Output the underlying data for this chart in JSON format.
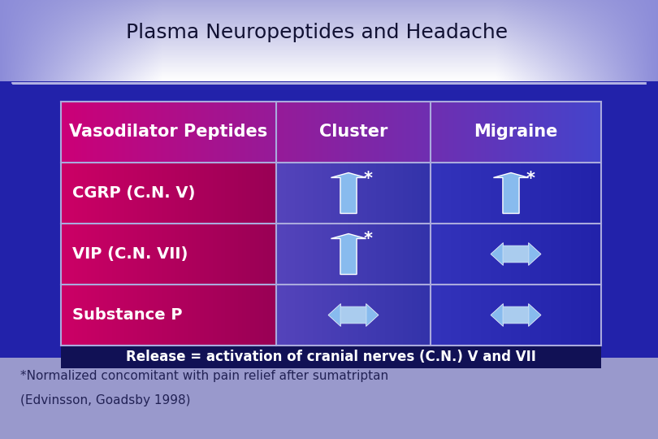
{
  "title": "Plasma Neuropeptides and Headache",
  "col1_header": "Vasodilator Peptides",
  "col2_header": "Cluster",
  "col3_header": "Migraine",
  "rows": [
    "CGRP (C.N. V)",
    "VIP (C.N. VII)",
    "Substance P"
  ],
  "footnote1": "*Normalized concomitant with pain relief after sumatriptan",
  "footnote2": "(Edvinsson, Goadsby 1998)",
  "release_note": "Release = activation of cranial nerves (C.N.) V and VII",
  "bg_top": "#ffffff",
  "bg_top_edge": "#aaaadd",
  "bg_main": "#3333bb",
  "bg_bottom": "#8888cc",
  "title_color": "#111133",
  "arrow_color": "#88bbee",
  "white": "#ffffff",
  "grid_color": "#aaaadd",
  "header_left": "#cc0077",
  "header_right": "#4444bb",
  "data_left": "#cc0066",
  "data_right": "#3333aa",
  "release_bar_color": "#111155",
  "footnote_color": "#222255"
}
